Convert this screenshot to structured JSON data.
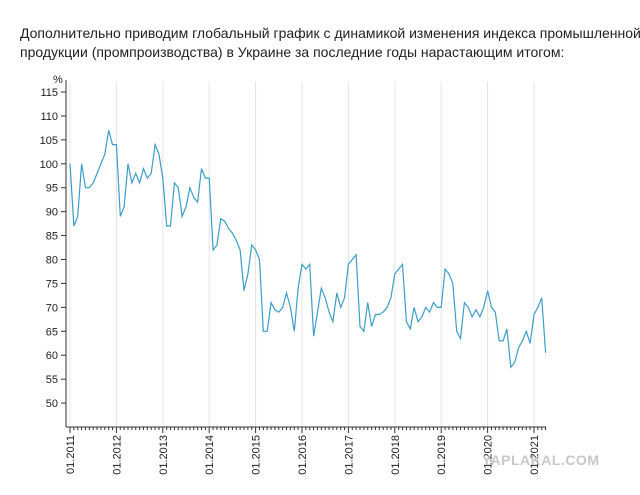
{
  "intro": {
    "line1": "Дополнительно приводим глобальный график с динамикой изменения индекса промышленной",
    "line2": "продукции (промпроизводства) в Украине за последние годы нарастающим итогом:"
  },
  "watermark": "YAPLAKAL.COM",
  "colors": {
    "line": "#3a9ec8",
    "grid": "#e4e4e4",
    "axis": "#333333"
  },
  "chart_data": {
    "type": "line",
    "title": "",
    "xlabel": "",
    "ylabel": "%",
    "ylim": [
      45,
      115
    ],
    "yticks": [
      50,
      55,
      60,
      65,
      70,
      75,
      80,
      85,
      90,
      95,
      100,
      105,
      110,
      115
    ],
    "xlim": [
      "2011-01",
      "2021-04"
    ],
    "xticks": [
      "01.2011",
      "01.2012",
      "01.2013",
      "01.2014",
      "01.2015",
      "01.2016",
      "01.2017",
      "01.2018",
      "01.2019",
      "01.2020",
      "01.2021"
    ],
    "grid": "vertical",
    "legend": "none",
    "series": [
      {
        "x": [
          "2011-01",
          "2011-02",
          "2011-03",
          "2011-04",
          "2011-05",
          "2011-06",
          "2011-07",
          "2011-08",
          "2011-09",
          "2011-10",
          "2011-11",
          "2011-12",
          "2012-01",
          "2012-02",
          "2012-03",
          "2012-04",
          "2012-05",
          "2012-06",
          "2012-07",
          "2012-08",
          "2012-09",
          "2012-10",
          "2012-11",
          "2012-12",
          "2013-01",
          "2013-02",
          "2013-03",
          "2013-04",
          "2013-05",
          "2013-06",
          "2013-07",
          "2013-08",
          "2013-09",
          "2013-10",
          "2013-11",
          "2013-12",
          "2014-01",
          "2014-02",
          "2014-03",
          "2014-04",
          "2014-05",
          "2014-06",
          "2014-07",
          "2014-08",
          "2014-09",
          "2014-10",
          "2014-11",
          "2014-12",
          "2015-01",
          "2015-02",
          "2015-03",
          "2015-04",
          "2015-05",
          "2015-06",
          "2015-07",
          "2015-08",
          "2015-09",
          "2015-10",
          "2015-11",
          "2015-12",
          "2016-01",
          "2016-02",
          "2016-03",
          "2016-04",
          "2016-05",
          "2016-06",
          "2016-07",
          "2016-08",
          "2016-09",
          "2016-10",
          "2016-11",
          "2016-12",
          "2017-01",
          "2017-02",
          "2017-03",
          "2017-04",
          "2017-05",
          "2017-06",
          "2017-07",
          "2017-08",
          "2017-09",
          "2017-10",
          "2017-11",
          "2017-12",
          "2018-01",
          "2018-02",
          "2018-03",
          "2018-04",
          "2018-05",
          "2018-06",
          "2018-07",
          "2018-08",
          "2018-09",
          "2018-10",
          "2018-11",
          "2018-12",
          "2019-01",
          "2019-02",
          "2019-03",
          "2019-04",
          "2019-05",
          "2019-06",
          "2019-07",
          "2019-08",
          "2019-09",
          "2019-10",
          "2019-11",
          "2019-12",
          "2020-01",
          "2020-02",
          "2020-03",
          "2020-04",
          "2020-05",
          "2020-06",
          "2020-07",
          "2020-08",
          "2020-09",
          "2020-10",
          "2020-11",
          "2020-12",
          "2021-01",
          "2021-02",
          "2021-03",
          "2021-04"
        ],
        "values": [
          100,
          87,
          89,
          100,
          95,
          95,
          96,
          98,
          100,
          102,
          107,
          104,
          104,
          89,
          91,
          100,
          96,
          98,
          96,
          99,
          97,
          98,
          104,
          102,
          97,
          87,
          87,
          96,
          95,
          89,
          91,
          95,
          93,
          92,
          99,
          97,
          97,
          82,
          83,
          88.5,
          88,
          86.5,
          85.5,
          84,
          82,
          73.5,
          77,
          83,
          82,
          80,
          65,
          65,
          71,
          69.5,
          69,
          70,
          73,
          70,
          65,
          74,
          79,
          78,
          79,
          64,
          69,
          74,
          72,
          69,
          67,
          73,
          70,
          72,
          79,
          80,
          81,
          66,
          65,
          71,
          66,
          68.5,
          68.5,
          69,
          70,
          72,
          77,
          78,
          79,
          67,
          65.5,
          70,
          67,
          68,
          70,
          69,
          71,
          70,
          70,
          78,
          77,
          75,
          65,
          63.5,
          71,
          70,
          68,
          69.5,
          68,
          70,
          73.5,
          70,
          69,
          63,
          63,
          65.5,
          57.5,
          58.5,
          61.5,
          63,
          65,
          62.5,
          68.5,
          70,
          72,
          60.5
        ]
      }
    ]
  }
}
